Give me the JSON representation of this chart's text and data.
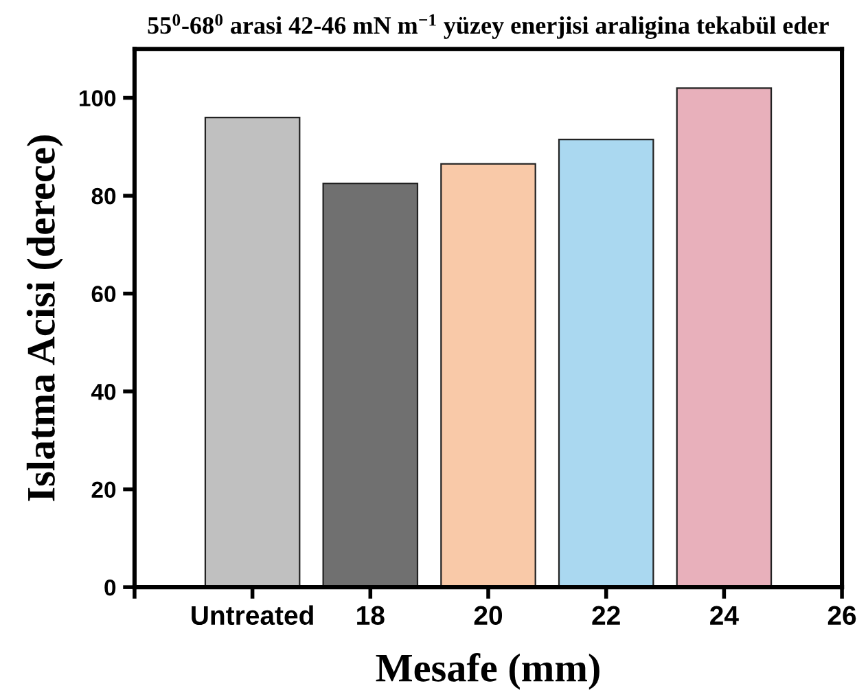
{
  "chart_data": {
    "type": "bar",
    "title": "55$^{0}$-68$^{0}$ arasi 42-46 mN m$^{−1}$ yüzey enerjisi araligina tekabül eder",
    "xlabel": "Mesafe (mm)",
    "ylabel": "Islatma Acisi (derece)",
    "x": [
      16,
      18,
      20,
      22,
      24
    ],
    "values": [
      96,
      82.5,
      86.5,
      91.5,
      102
    ],
    "colors": [
      "#c0c0c0",
      "#707070",
      "#f9c9a8",
      "#aad8f0",
      "#e8b0bb"
    ],
    "xlim": [
      14,
      26
    ],
    "xticks": [
      {
        "value": 14,
        "label": null
      },
      {
        "value": 16,
        "label": "Untreated"
      },
      18,
      20,
      22,
      24,
      26
    ],
    "ylim": [
      0,
      110
    ],
    "yticks": [
      0,
      20,
      40,
      60,
      80,
      100
    ],
    "grid": false,
    "legend": false
  }
}
